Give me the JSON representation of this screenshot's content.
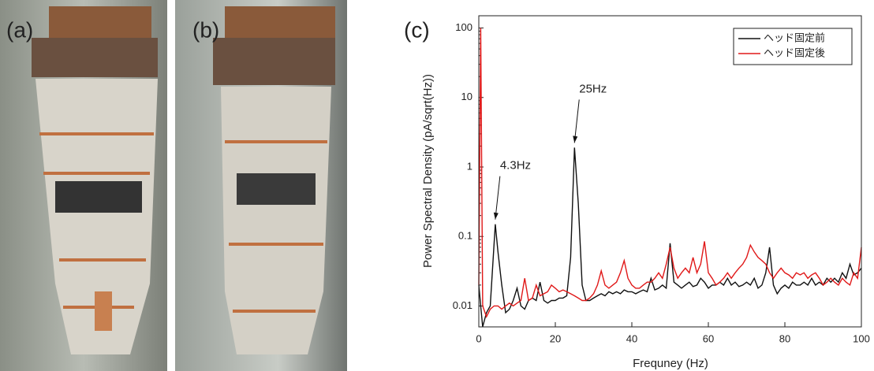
{
  "panels": {
    "a": "(a)",
    "b": "(b)",
    "c": "(c)"
  },
  "chart_data": {
    "type": "line",
    "xlabel": "Frequney (Hz)",
    "ylabel": "Power Spectral Density (pA/sqrt(Hz))",
    "xlim": [
      0,
      100
    ],
    "xticks": [
      0,
      20,
      40,
      60,
      80,
      100
    ],
    "ylim": [
      0.005,
      150
    ],
    "yticks": [
      0.01,
      0.1,
      1,
      10,
      100
    ],
    "yscale": "log",
    "legend": "upper right",
    "x": [
      0,
      0.5,
      1,
      2,
      3,
      4,
      4.3,
      5,
      6,
      7,
      8,
      9,
      10,
      11,
      12,
      13,
      14,
      15,
      16,
      17,
      18,
      19,
      20,
      21,
      22,
      23,
      24,
      25,
      26,
      27,
      28,
      29,
      30,
      31,
      32,
      33,
      34,
      35,
      36,
      37,
      38,
      39,
      40,
      41,
      42,
      43,
      44,
      45,
      46,
      47,
      48,
      49,
      50,
      51,
      52,
      53,
      54,
      55,
      56,
      57,
      58,
      59,
      60,
      61,
      62,
      63,
      64,
      65,
      66,
      67,
      68,
      69,
      70,
      71,
      72,
      73,
      74,
      75,
      76,
      77,
      78,
      79,
      80,
      81,
      82,
      83,
      84,
      85,
      86,
      87,
      88,
      89,
      90,
      91,
      92,
      93,
      94,
      95,
      96,
      97,
      98,
      99,
      100
    ],
    "series": [
      {
        "name": "ヘッド固定前",
        "color": "#111111",
        "values": [
          0.02,
          0.01,
          0.005,
          0.008,
          0.01,
          0.08,
          0.15,
          0.06,
          0.02,
          0.008,
          0.009,
          0.012,
          0.018,
          0.01,
          0.009,
          0.012,
          0.013,
          0.012,
          0.022,
          0.012,
          0.011,
          0.012,
          0.012,
          0.013,
          0.013,
          0.014,
          0.05,
          1.9,
          0.3,
          0.02,
          0.012,
          0.012,
          0.013,
          0.014,
          0.015,
          0.014,
          0.016,
          0.015,
          0.016,
          0.015,
          0.017,
          0.016,
          0.016,
          0.015,
          0.016,
          0.017,
          0.016,
          0.025,
          0.017,
          0.018,
          0.02,
          0.018,
          0.08,
          0.022,
          0.02,
          0.018,
          0.02,
          0.022,
          0.019,
          0.02,
          0.025,
          0.022,
          0.018,
          0.02,
          0.02,
          0.022,
          0.02,
          0.025,
          0.02,
          0.022,
          0.019,
          0.02,
          0.022,
          0.02,
          0.025,
          0.018,
          0.02,
          0.03,
          0.07,
          0.02,
          0.015,
          0.018,
          0.02,
          0.018,
          0.022,
          0.02,
          0.02,
          0.022,
          0.02,
          0.025,
          0.02,
          0.022,
          0.02,
          0.025,
          0.022,
          0.025,
          0.022,
          0.03,
          0.025,
          0.04,
          0.028,
          0.03,
          0.035
        ]
      },
      {
        "name": "ヘッド固定後",
        "color": "#e01818",
        "values": [
          0.02,
          100,
          0.01,
          0.007,
          0.009,
          0.01,
          0.01,
          0.01,
          0.009,
          0.01,
          0.011,
          0.01,
          0.011,
          0.012,
          0.025,
          0.012,
          0.013,
          0.02,
          0.014,
          0.015,
          0.016,
          0.02,
          0.018,
          0.016,
          0.017,
          0.016,
          0.015,
          0.014,
          0.013,
          0.012,
          0.012,
          0.013,
          0.015,
          0.02,
          0.032,
          0.02,
          0.018,
          0.02,
          0.022,
          0.03,
          0.045,
          0.025,
          0.02,
          0.018,
          0.018,
          0.02,
          0.022,
          0.022,
          0.025,
          0.03,
          0.025,
          0.04,
          0.07,
          0.035,
          0.025,
          0.03,
          0.035,
          0.03,
          0.05,
          0.03,
          0.04,
          0.085,
          0.03,
          0.025,
          0.02,
          0.022,
          0.025,
          0.03,
          0.025,
          0.03,
          0.035,
          0.04,
          0.05,
          0.075,
          0.06,
          0.05,
          0.045,
          0.04,
          0.03,
          0.025,
          0.03,
          0.035,
          0.03,
          0.028,
          0.025,
          0.03,
          0.028,
          0.03,
          0.025,
          0.028,
          0.03,
          0.025,
          0.02,
          0.022,
          0.025,
          0.022,
          0.02,
          0.025,
          0.022,
          0.02,
          0.03,
          0.025,
          0.07
        ]
      }
    ],
    "annotations": [
      {
        "text": "4.3Hz",
        "x": 4.3,
        "y": 0.15
      },
      {
        "text": "25Hz",
        "x": 25,
        "y": 1.9
      }
    ]
  }
}
